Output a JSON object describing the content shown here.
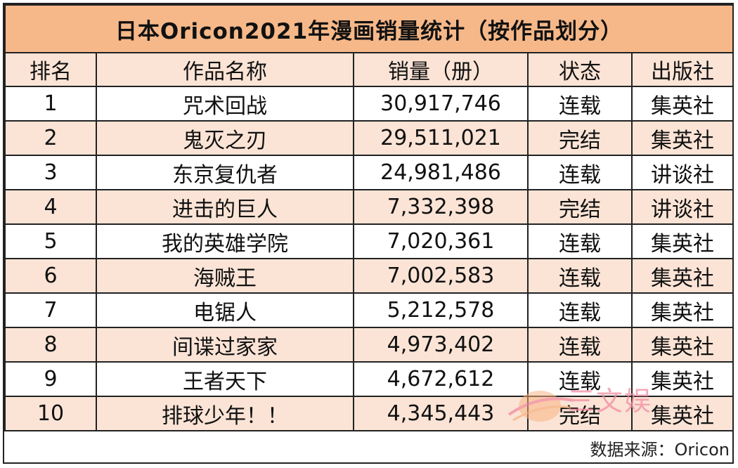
{
  "chart_data": {
    "type": "table",
    "title": "日本Oricon2021年漫画销量统计（按作品划分）",
    "columns": [
      "排名",
      "作品名称",
      "销量（册）",
      "状态",
      "出版社"
    ],
    "rows": [
      [
        "1",
        "咒术回战",
        "30,917,746",
        "连载",
        "集英社"
      ],
      [
        "2",
        "鬼灭之刃",
        "29,511,021",
        "完结",
        "集英社"
      ],
      [
        "3",
        "东京复仇者",
        "24,981,486",
        "连载",
        "讲谈社"
      ],
      [
        "4",
        "进击的巨人",
        "7,332,398",
        "完结",
        "讲谈社"
      ],
      [
        "5",
        "我的英雄学院",
        "7,020,361",
        "连载",
        "集英社"
      ],
      [
        "6",
        "海贼王",
        "7,002,583",
        "连载",
        "集英社"
      ],
      [
        "7",
        "电锯人",
        "5,212,578",
        "连载",
        "集英社"
      ],
      [
        "8",
        "间谍过家家",
        "4,973,402",
        "连载",
        "集英社"
      ],
      [
        "9",
        "王者天下",
        "4,672,612",
        "连载",
        "集英社"
      ],
      [
        "10",
        "排球少年！！",
        "4,345,443",
        "完结",
        "集英社"
      ]
    ],
    "source": "数据来源：Oricon"
  },
  "watermark": {
    "text": "三文娱",
    "color": "#f28ca0"
  },
  "colors": {
    "title_bg": "#f6b889",
    "alt_row_bg": "#fbe4d6",
    "border": "#222222"
  }
}
